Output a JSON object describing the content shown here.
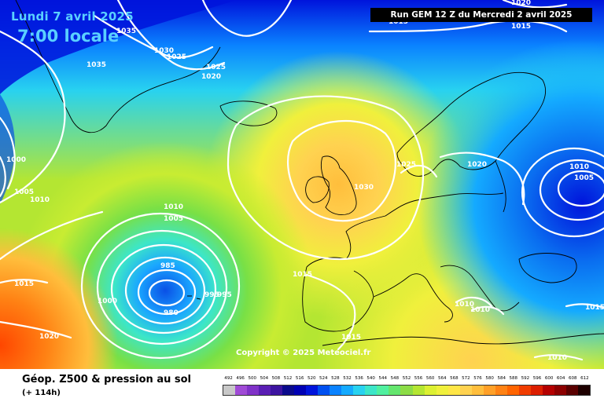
{
  "header": {
    "date": "Lundi 7 avril 2025",
    "time": "7:00 locale",
    "run": "Run GEM 12 Z du Mercredi 2 avril 2025"
  },
  "copyright": "Copyright © 2025 Meteociel.fr",
  "footer": {
    "caption": "Géop. Z500 & pression au sol",
    "subcaption": "(+ 114h)"
  },
  "legend": {
    "values": [
      "492",
      "496",
      "500",
      "504",
      "508",
      "512",
      "516",
      "520",
      "524",
      "528",
      "532",
      "536",
      "540",
      "544",
      "548",
      "552",
      "556",
      "560",
      "564",
      "568",
      "572",
      "576",
      "580",
      "584",
      "588",
      "592",
      "596",
      "600",
      "604",
      "608",
      "612"
    ],
    "colors": [
      "#c8c8c8",
      "#a04bd6",
      "#8032c8",
      "#5a1eb4",
      "#3c14a0",
      "#0a0a8c",
      "#0000b4",
      "#0014dc",
      "#0050f0",
      "#0a82ff",
      "#14aaff",
      "#28d2f0",
      "#3ce6c8",
      "#50f0a0",
      "#64e66e",
      "#8cdc46",
      "#b4e632",
      "#dcf032",
      "#f0f03c",
      "#ffe646",
      "#ffd250",
      "#ffbe3c",
      "#ffa028",
      "#ff8214",
      "#ff6400",
      "#f03c00",
      "#dc1e00",
      "#b40000",
      "#8c0000",
      "#5a0000",
      "#1e0000"
    ]
  },
  "map": {
    "water_color": "#000000",
    "isobar_color": "#ffffff",
    "labels": [
      "1035",
      "1030",
      "1025",
      "1035",
      "1025",
      "1020",
      "1020",
      "1015",
      "1000",
      "1005",
      "1010",
      "1010",
      "1005",
      "1015",
      "985",
      "1000",
      "980",
      "995",
      "995",
      "1020",
      "1015",
      "1025",
      "1020",
      "1030",
      "1010",
      "1005",
      "1015",
      "1010",
      "1010",
      "1015",
      "1015",
      "1010"
    ]
  }
}
